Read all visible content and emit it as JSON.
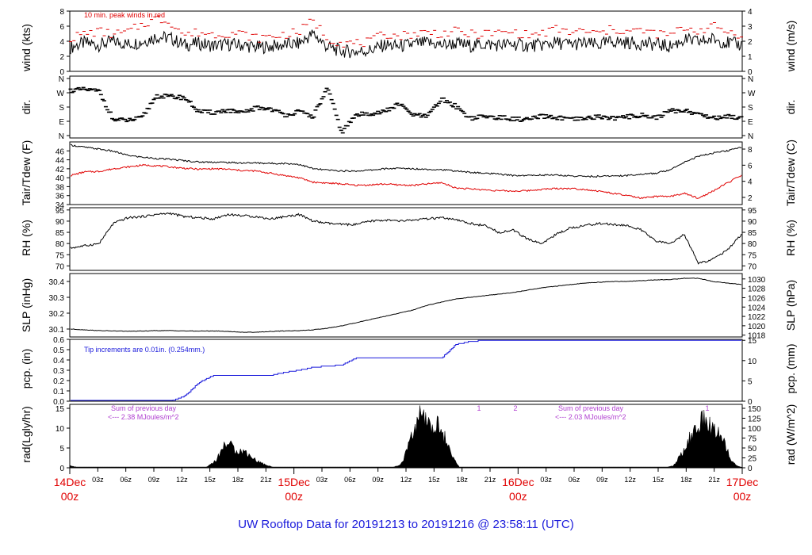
{
  "title": "UW Rooftop Data for 20191213  to  20191216 @ 23:58:11  (UTC)",
  "colors": {
    "title": "#1a1adb",
    "date_labels": "#e00000",
    "temp": "#000000",
    "dew": "#e00000",
    "precip": "#1a1adb",
    "annot": "#b040d0",
    "peak": "#e00000",
    "main": "#000000"
  },
  "x_axis": {
    "hour_ticks": [
      "03z",
      "06z",
      "09z",
      "12z",
      "15z",
      "18z",
      "21z",
      "03z",
      "06z",
      "09z",
      "12z",
      "15z",
      "18z",
      "21z",
      "03z",
      "06z",
      "09z",
      "12z",
      "15z",
      "18z",
      "21z"
    ],
    "day_labels": [
      {
        "date": "14Dec",
        "hour": "00z"
      },
      {
        "date": "15Dec",
        "hour": "00z"
      },
      {
        "date": "16Dec",
        "hour": "00z"
      },
      {
        "date": "17Dec",
        "hour": "00z"
      }
    ]
  },
  "chart_data": [
    {
      "type": "line",
      "id": "wind",
      "ylabel_left": "wind (kts)",
      "ylabel_right": "wind (m/s)",
      "ylim": [
        0,
        8
      ],
      "yticks_left": [
        "0",
        "2",
        "4",
        "6",
        "8"
      ],
      "yticks_right": [
        "0",
        "1",
        "2",
        "3",
        "4"
      ],
      "annotation": "10 min. peak winds in red",
      "series": [
        {
          "values": [
            3.2,
            3.8,
            3.5,
            4.0,
            3.6,
            3.9,
            4.6,
            4.4,
            3.5,
            3.7,
            3.4,
            3.6,
            3.5,
            3.2,
            3.3,
            3.5,
            3.7,
            5.0,
            3.2,
            2.7,
            2.6,
            2.8,
            3.5,
            3.3,
            3.6,
            3.8,
            3.5,
            3.7,
            3.4,
            3.6,
            3.5,
            3.6,
            3.4,
            3.5,
            3.8,
            3.6,
            3.7,
            3.5,
            4.0,
            3.8,
            3.7,
            3.6,
            3.3,
            4.2,
            3.9,
            4.3,
            3.8,
            3.5
          ]
        },
        {
          "values": [
            4.4,
            5.0,
            5.3,
            4.9,
            5.2,
            6.2,
            7.0,
            6.6,
            4.8,
            5.2,
            4.9,
            5.1,
            5.0,
            4.4,
            4.6,
            4.9,
            5.2,
            6.8,
            4.4,
            3.8,
            3.7,
            3.9,
            5.0,
            4.7,
            5.0,
            5.2,
            5.0,
            5.3,
            4.9,
            5.0,
            5.1,
            5.2,
            4.8,
            5.0,
            5.6,
            5.2,
            5.3,
            5.0,
            5.6,
            5.3,
            5.4,
            5.0,
            4.8,
            5.8,
            5.4,
            6.0,
            5.3,
            4.9
          ]
        }
      ]
    },
    {
      "type": "scatter",
      "id": "dir",
      "ylabel_left": "dir.",
      "ylabel_right": "dir.",
      "yticks": [
        "N",
        "E",
        "S",
        "W",
        "N"
      ],
      "yvalues": [
        0,
        90,
        180,
        270,
        360
      ],
      "series": [
        {
          "values": [
            285,
            290,
            280,
            100,
            95,
            110,
            250,
            245,
            240,
            150,
            145,
            160,
            140,
            175,
            170,
            130,
            150,
            120,
            300,
            20,
            130,
            140,
            150,
            200,
            130,
            120,
            230,
            185,
            110,
            120,
            115,
            105,
            100,
            120,
            115,
            100,
            105,
            120,
            110,
            118,
            130,
            112,
            155,
            160,
            135,
            112,
            120,
            115
          ]
        }
      ]
    },
    {
      "type": "line",
      "id": "temp",
      "ylabel_left": "Tair/Tdew (F)",
      "ylabel_right": "Tair/Tdew (C)",
      "ylim": [
        34,
        48
      ],
      "yticks_left": [
        "34",
        "36",
        "38",
        "40",
        "42",
        "44",
        "46"
      ],
      "yticks_right": [
        "2",
        "4",
        "6",
        "8"
      ],
      "series": [
        {
          "name": "Tair",
          "values": [
            47.3,
            46.8,
            46.4,
            45.9,
            45.0,
            44.6,
            44.3,
            44.1,
            43.8,
            43.5,
            43.5,
            43.4,
            43.3,
            43.3,
            43.2,
            43.2,
            43.0,
            42.0,
            41.7,
            41.5,
            41.5,
            41.7,
            42.0,
            42.1,
            42.0,
            41.9,
            41.8,
            41.5,
            41.2,
            41.0,
            40.8,
            40.5,
            40.5,
            40.6,
            40.6,
            40.4,
            40.3,
            40.3,
            40.4,
            40.5,
            40.8,
            41.0,
            41.8,
            43.5,
            44.8,
            45.5,
            46.0,
            46.8
          ]
        },
        {
          "name": "Tdew",
          "values": [
            40.5,
            41.3,
            41.4,
            42.0,
            42.4,
            42.8,
            42.7,
            42.4,
            42.1,
            41.9,
            42.0,
            41.9,
            41.6,
            41.5,
            41.0,
            40.5,
            40.0,
            39.0,
            38.8,
            38.6,
            38.3,
            38.4,
            38.6,
            38.4,
            38.3,
            38.6,
            38.9,
            37.7,
            37.5,
            37.3,
            37.1,
            37.0,
            37.1,
            37.4,
            37.6,
            37.6,
            37.4,
            37.0,
            36.5,
            36.0,
            35.4,
            35.8,
            35.8,
            36.5,
            35.4,
            37.0,
            38.8,
            40.5
          ]
        }
      ]
    },
    {
      "type": "line",
      "id": "rh",
      "ylabel_left": "RH (%)",
      "ylabel_right": "RH (%)",
      "ylim": [
        68,
        96
      ],
      "yticks_left": [
        "70",
        "75",
        "80",
        "85",
        "90",
        "95"
      ],
      "yticks_right": [
        "70",
        "75",
        "80",
        "85",
        "90",
        "95"
      ],
      "series": [
        {
          "values": [
            78.0,
            79.0,
            80.0,
            89.0,
            91.5,
            92.0,
            93.0,
            93.5,
            92.0,
            91.5,
            91.0,
            93.0,
            92.5,
            92.0,
            91.0,
            92.0,
            93.0,
            90.0,
            89.0,
            88.5,
            88.5,
            90.0,
            90.5,
            90.0,
            90.5,
            91.0,
            91.5,
            90.5,
            89.0,
            88.0,
            85.0,
            86.0,
            82.0,
            80.0,
            84.0,
            87.0,
            88.0,
            89.0,
            88.5,
            88.0,
            86.0,
            81.0,
            80.0,
            84.0,
            71.0,
            73.0,
            77.0,
            84.0
          ]
        }
      ]
    },
    {
      "type": "line",
      "id": "slp",
      "ylabel_left": "SLP (inHg)",
      "ylabel_right": "SLP (hPa)",
      "ylim": [
        30.05,
        30.45
      ],
      "yticks_left": [
        "30.1",
        "30.2",
        "30.3",
        "30.4"
      ],
      "yticks_right": [
        "1018",
        "1020",
        "1022",
        "1024",
        "1026",
        "1028",
        "1030"
      ],
      "series": [
        {
          "values": [
            30.1,
            30.095,
            30.09,
            30.088,
            30.086,
            30.087,
            30.09,
            30.09,
            30.088,
            30.087,
            30.088,
            30.085,
            30.08,
            30.08,
            30.085,
            30.088,
            30.09,
            30.095,
            30.105,
            30.12,
            30.14,
            30.16,
            30.18,
            30.2,
            30.22,
            30.25,
            30.27,
            30.29,
            30.3,
            30.31,
            30.32,
            30.33,
            30.345,
            30.36,
            30.37,
            30.38,
            30.39,
            30.395,
            30.4,
            30.4,
            30.405,
            30.41,
            30.412,
            30.42,
            30.42,
            30.4,
            30.39,
            30.38
          ]
        }
      ]
    },
    {
      "type": "line",
      "id": "pcp",
      "ylabel_left": "pcp. (in)",
      "ylabel_right": "pcp. (mm)",
      "ylim": [
        0,
        0.6
      ],
      "yticks_left": [
        "0.0",
        "0.1",
        "0.2",
        "0.3",
        "0.4",
        "0.5",
        "0.6"
      ],
      "yticks_right": [
        "0",
        "5",
        "10",
        "15"
      ],
      "annotation": "Tip increments are 0.01in. (0.254mm.)",
      "series": [
        {
          "values": [
            0,
            0,
            0,
            0,
            0,
            0,
            0,
            0,
            0.05,
            0.18,
            0.25,
            0.25,
            0.25,
            0.25,
            0.25,
            0.28,
            0.3,
            0.33,
            0.34,
            0.35,
            0.42,
            0.42,
            0.42,
            0.42,
            0.42,
            0.42,
            0.42,
            0.55,
            0.58,
            0.59,
            0.59,
            0.59,
            0.59,
            0.59,
            0.59,
            0.59,
            0.59,
            0.59,
            0.59,
            0.59,
            0.59,
            0.59,
            0.59,
            0.59,
            0.59,
            0.59,
            0.59,
            0.59
          ]
        }
      ]
    },
    {
      "type": "area",
      "id": "rad",
      "ylabel_left": "rad(Lgly/hr)",
      "ylabel_right": "rad (W/m^2)",
      "ylim": [
        0,
        16
      ],
      "yticks_left": [
        "0",
        "5",
        "10",
        "15"
      ],
      "yticks_right": [
        "0",
        "25",
        "50",
        "75",
        "100",
        "125",
        "150"
      ],
      "annotations": [
        {
          "line1": "Sum of previous day",
          "line2": "<--- 2.38 MJoules/m^2"
        },
        {
          "line1": "Sum of previous day",
          "line2": "<--- 2.03 MJoules/m^2"
        }
      ],
      "top_labels": [
        "1",
        "2",
        "1"
      ],
      "series": [
        {
          "values": [
            0.5,
            0,
            0,
            0,
            0,
            0,
            0,
            0,
            0,
            0,
            0,
            0,
            0,
            0,
            0.2,
            2.0,
            6.5,
            4.5,
            4.0,
            2.0,
            0.8,
            0,
            0,
            0,
            0,
            0,
            0,
            0,
            0,
            0,
            0,
            0,
            0,
            0,
            0.8,
            7.0,
            13.0,
            10.0,
            11.0,
            4.0,
            0,
            0,
            0,
            0,
            0,
            0,
            0,
            0,
            0,
            0,
            0,
            0,
            0,
            0,
            0,
            0,
            0,
            0,
            0,
            0,
            0,
            0,
            0.5,
            4.0,
            9.0,
            12.0,
            10.0,
            8.0,
            1.5,
            0
          ]
        }
      ]
    }
  ]
}
